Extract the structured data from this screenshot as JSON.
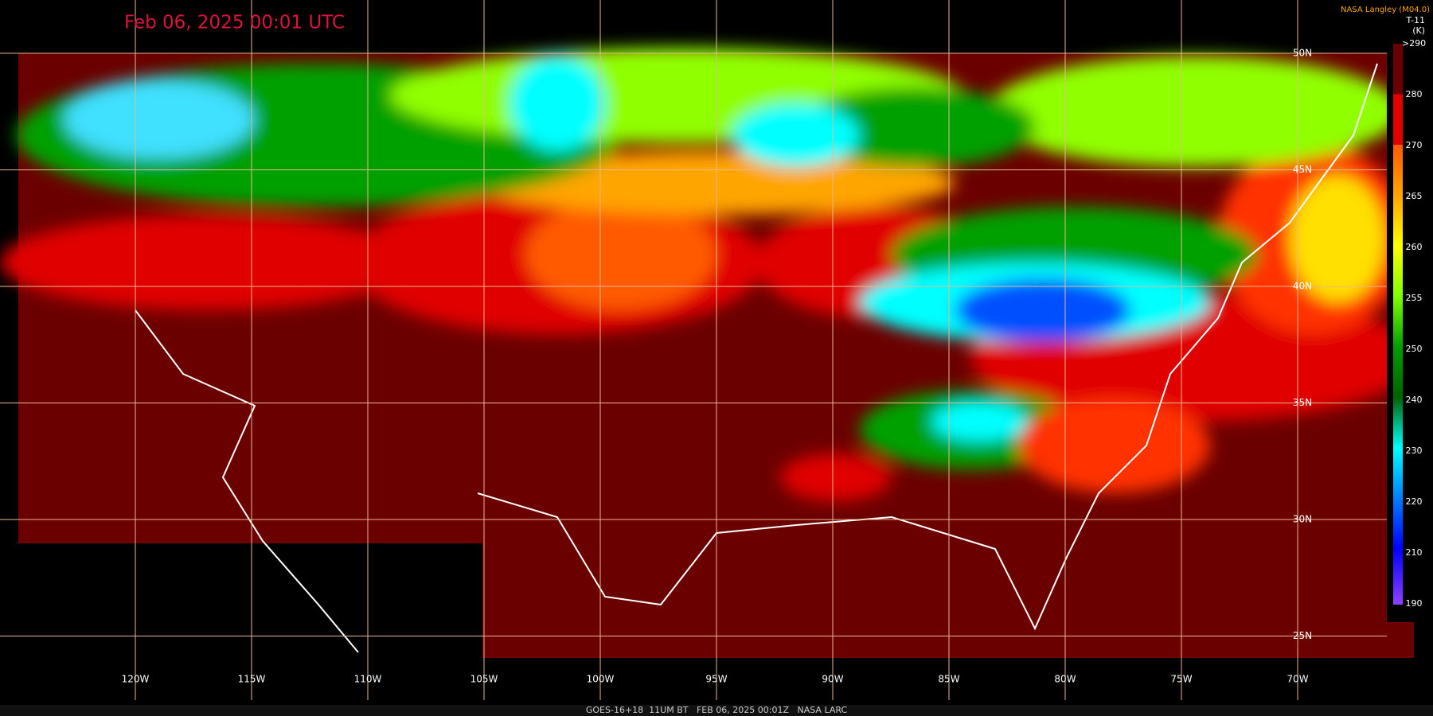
{
  "header": {
    "timestamp": "Feb 06, 2025 00:01 UTC",
    "credit": "NASA Langley (M04.0)"
  },
  "legend": {
    "title": "T-11",
    "unit": "(K)",
    "ticks": [
      ">290",
      "280",
      "270",
      "265",
      "260",
      "255",
      "250",
      "240",
      "230",
      "220",
      "210",
      "190"
    ]
  },
  "map": {
    "longitudes": [
      "120W",
      "115W",
      "110W",
      "105W",
      "100W",
      "95W",
      "90W",
      "85W",
      "80W",
      "75W",
      "70W"
    ],
    "latitudes": [
      "50N",
      "45N",
      "40N",
      "35N",
      "30N",
      "25N"
    ]
  },
  "footer": "GOES-16+18  11UM BT   FEB 06, 2025 00:01Z   NASA LARC"
}
